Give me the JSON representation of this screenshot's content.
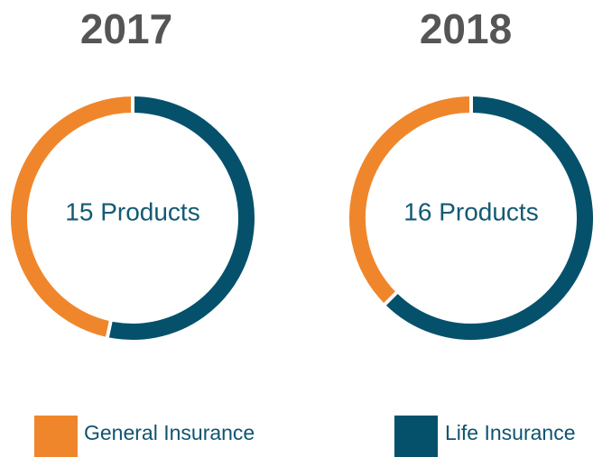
{
  "chart_data": [
    {
      "type": "donut",
      "title": "2017",
      "center_label": "15 Products",
      "categories": [
        "Life Insurance",
        "General Insurance"
      ],
      "values": [
        8,
        7
      ],
      "colors": [
        "#05516c",
        "#f0862b"
      ]
    },
    {
      "type": "donut",
      "title": "2018",
      "center_label": "16 Products",
      "categories": [
        "Life Insurance",
        "General Insurance"
      ],
      "values": [
        10,
        6
      ],
      "colors": [
        "#05516c",
        "#f0862b"
      ]
    }
  ]
}
